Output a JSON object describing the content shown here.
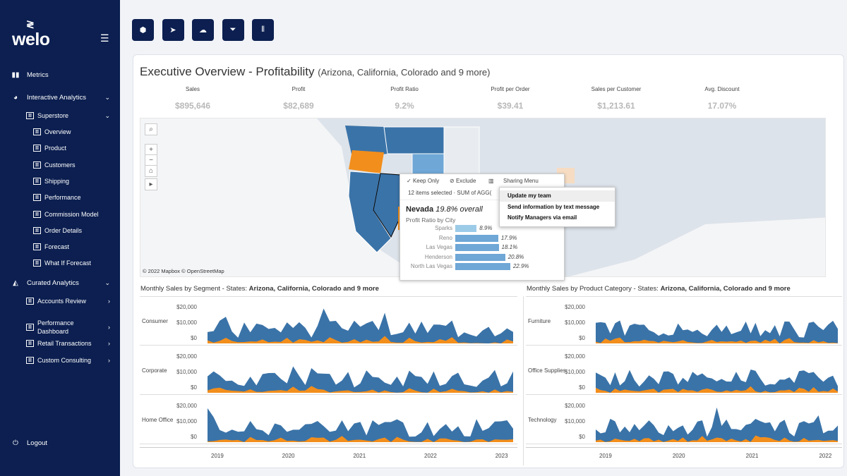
{
  "sidebar": {
    "logo": "welo",
    "items": [
      {
        "label": "Metrics",
        "icon": "bar-chart-icon"
      },
      {
        "label": "Interactive Analytics",
        "icon": "pie-chart-icon"
      },
      {
        "label": "Superstore"
      },
      {
        "label": "Overview"
      },
      {
        "label": "Product"
      },
      {
        "label": "Customers"
      },
      {
        "label": "Shipping"
      },
      {
        "label": "Performance"
      },
      {
        "label": "Commission Model"
      },
      {
        "label": "Order Details"
      },
      {
        "label": "Forecast"
      },
      {
        "label": "What If Forecast"
      },
      {
        "label": "Curated Analytics",
        "icon": "area-chart-icon"
      },
      {
        "label": "Accounts Review"
      },
      {
        "label": "Performance Dashboard"
      },
      {
        "label": "Retail Transactions"
      },
      {
        "label": "Custom Consulting"
      }
    ],
    "logout": "Logout"
  },
  "toolbar": [
    "cube-icon",
    "send-icon",
    "cloud-upload-icon",
    "filter-icon",
    "columns-icon"
  ],
  "dashboard": {
    "title": "Executive Overview - Profitability",
    "subtitle": "(Arizona, California, Colorado and 9 more)",
    "kpis": [
      {
        "label": "Sales",
        "value": "$895,646"
      },
      {
        "label": "Profit",
        "value": "$82,689"
      },
      {
        "label": "Profit Ratio",
        "value": "9.2%"
      },
      {
        "label": "Profit per Order",
        "value": "$39.41"
      },
      {
        "label": "Sales per Customer",
        "value": "$1,213.61"
      },
      {
        "label": "Avg. Discount",
        "value": "17.07%"
      }
    ],
    "map": {
      "attribution": "© 2022 Mapbox © OpenStreetMap"
    },
    "tooltip": {
      "keep_only": "Keep Only",
      "exclude": "Exclude",
      "sharing": "Sharing Menu",
      "selected": "12 items selected · SUM of AGG(",
      "state": "Nevada",
      "overall": "19.8% overall",
      "subtitle": "Profit Ratio by City",
      "cities": [
        {
          "name": "Sparks",
          "value": 8.9,
          "label": "8.9%"
        },
        {
          "name": "Reno",
          "value": 17.9,
          "label": "17.9%"
        },
        {
          "name": "Las Vegas",
          "value": 18.1,
          "label": "18.1%"
        },
        {
          "name": "Henderson",
          "value": 20.8,
          "label": "20.8%"
        },
        {
          "name": "North Las Vegas",
          "value": 22.9,
          "label": "22.9%"
        }
      ]
    },
    "sharing_menu": [
      "Update my team",
      "Send information by text message",
      "Notify Managers via email"
    ],
    "left_panel": {
      "title": "Monthly Sales by Segment - States: ",
      "title_bold": "Arizona, California, Colorado and 9 more",
      "rows": [
        "Consumer",
        "Corporate",
        "Home Office"
      ],
      "years": [
        "2019",
        "2020",
        "2021",
        "2022",
        "2023"
      ]
    },
    "right_panel": {
      "title": "Monthly Sales by Product Category - States: ",
      "title_bold": "Arizona, California, Colorado and 9 more",
      "rows": [
        "Furniture",
        "Office Supplies",
        "Technology"
      ],
      "years": [
        "2019",
        "2020",
        "2021",
        "2022"
      ]
    },
    "yticks": [
      "$20,000",
      "$10,000",
      "$0"
    ]
  },
  "colors": {
    "sidebar": "#0c1f50",
    "sales": "#3a73a8",
    "profit": "#f28e1c"
  }
}
